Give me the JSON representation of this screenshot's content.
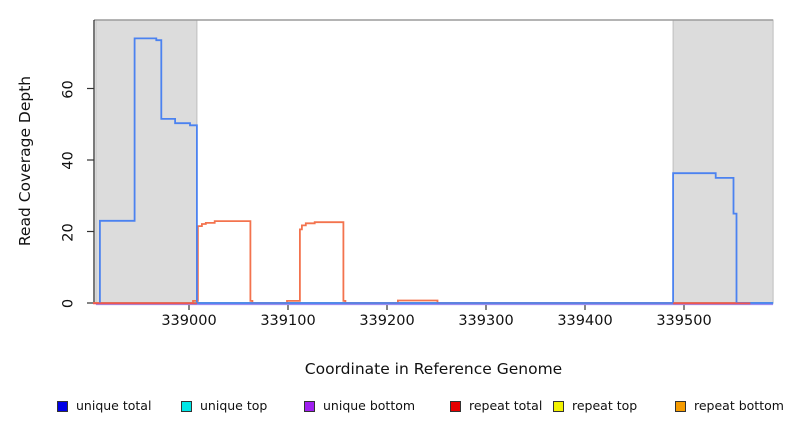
{
  "figure": {
    "xlabel": "Coordinate in Reference Genome",
    "ylabel": "Read Coverage Depth"
  },
  "legend": {
    "items": [
      {
        "label": "unique total",
        "color": "#0000e6"
      },
      {
        "label": "unique top",
        "color": "#00e6e6"
      },
      {
        "label": "unique bottom",
        "color": "#a020f0"
      },
      {
        "label": "repeat total",
        "color": "#e60000"
      },
      {
        "label": "repeat top",
        "color": "#f2f200"
      },
      {
        "label": "repeat bottom",
        "color": "#f59b00"
      }
    ]
  },
  "chart_data": {
    "type": "line",
    "title": "",
    "xlabel": "Coordinate in Reference Genome",
    "ylabel": "Read Coverage Depth",
    "xlim": [
      338904,
      339592
    ],
    "ylim": [
      0,
      79
    ],
    "x_ticks": [
      339000,
      339100,
      339200,
      339300,
      339400,
      339500
    ],
    "x_tick_labels": [
      "339000",
      "339100",
      "339200",
      "339300",
      "339400",
      "339500"
    ],
    "y_ticks": [
      0,
      20,
      40,
      60
    ],
    "y_tick_labels": [
      "0",
      "20",
      "40",
      "60"
    ],
    "grid": false,
    "legend_position": "bottom",
    "highlighted_regions": [
      {
        "name": "shaded-region-left",
        "x0": 338906,
        "x1": 339008,
        "fill": "#dcdcdc",
        "stroke": "#bdbdbd"
      },
      {
        "name": "shaded-region-right",
        "x0": 339489,
        "x1": 339590,
        "fill": "#dcdcdc",
        "stroke": "#bdbdbd"
      }
    ],
    "series": [
      {
        "name": "repeat top",
        "color": "#f2f200",
        "width": 1.4,
        "dy": 0,
        "segments": [
          [
            [
              338903,
              0
            ],
            [
              339567,
              0
            ]
          ]
        ]
      },
      {
        "name": "unique top",
        "color": "#00d9d9",
        "width": 1.4,
        "dy": 0,
        "segments": [
          [
            [
              338910,
              0
            ],
            [
              339590,
              0
            ]
          ]
        ]
      },
      {
        "name": "unique bottom",
        "color": "#9b8cf0",
        "width": 1.5,
        "dy": 1.4,
        "segments": [
          [
            [
              338906,
              0
            ],
            [
              339590,
              0
            ]
          ]
        ]
      },
      {
        "name": "repeat bottom",
        "color": "#f3734e",
        "width": 1.8,
        "dy": 0,
        "segments": [
          [
            [
              338903,
              0
            ],
            [
              339004,
              0
            ],
            [
              339004,
              0.6
            ],
            [
              339009,
              0.6
            ],
            [
              339009,
              21.5
            ],
            [
              339013,
              21.5
            ],
            [
              339013,
              22.1
            ],
            [
              339017,
              22.1
            ],
            [
              339017,
              22.4
            ],
            [
              339026,
              22.4
            ],
            [
              339026,
              22.9
            ],
            [
              339062,
              22.9
            ],
            [
              339062,
              0.6
            ],
            [
              339064,
              0.6
            ],
            [
              339064,
              0
            ],
            [
              339099,
              0
            ],
            [
              339099,
              0.6
            ],
            [
              339112,
              0.6
            ],
            [
              339112,
              20.6
            ],
            [
              339114,
              20.6
            ],
            [
              339114,
              21.7
            ],
            [
              339118,
              21.7
            ],
            [
              339118,
              22.3
            ],
            [
              339127,
              22.3
            ],
            [
              339127,
              22.6
            ],
            [
              339156,
              22.6
            ],
            [
              339156,
              0.6
            ],
            [
              339158,
              0.6
            ],
            [
              339158,
              0
            ],
            [
              339211,
              0
            ],
            [
              339211,
              0.7
            ],
            [
              339251,
              0.7
            ],
            [
              339251,
              0
            ],
            [
              339567,
              0
            ]
          ]
        ]
      },
      {
        "name": "unique total",
        "color": "#4b82f0",
        "width": 1.8,
        "dy": 0,
        "segments": [
          [
            [
              338910,
              0
            ],
            [
              338910,
              23
            ],
            [
              338945,
              23
            ],
            [
              338945,
              74
            ],
            [
              338967,
              74
            ],
            [
              338967,
              73.5
            ],
            [
              338972,
              73.5
            ],
            [
              338972,
              51.5
            ],
            [
              338986,
              51.5
            ],
            [
              338986,
              50.3
            ],
            [
              339001,
              50.3
            ],
            [
              339001,
              49.7
            ],
            [
              339008,
              49.7
            ],
            [
              339008,
              0
            ],
            [
              339489,
              0
            ],
            [
              339489,
              36.3
            ],
            [
              339532,
              36.3
            ],
            [
              339532,
              35
            ],
            [
              339550,
              35
            ],
            [
              339550,
              25
            ],
            [
              339553,
              25
            ],
            [
              339553,
              0
            ],
            [
              339590,
              0
            ]
          ]
        ]
      },
      {
        "name": "repeat total",
        "color": "#ee5555",
        "width": 1.8,
        "dy": 0.4,
        "segments": [
          [
            [
              338903,
              0
            ],
            [
              339008,
              0
            ]
          ],
          [
            [
              339489,
              0
            ],
            [
              339567,
              0
            ]
          ]
        ]
      }
    ]
  }
}
